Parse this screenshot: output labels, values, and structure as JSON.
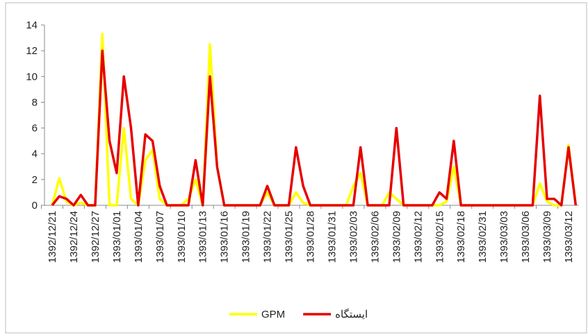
{
  "chart_data": {
    "type": "line",
    "categories": [
      "1392/12/21",
      null,
      null,
      "1392/12/24",
      null,
      null,
      "1392/12/27",
      null,
      null,
      "1393/01/01",
      null,
      null,
      "1393/01/04",
      null,
      null,
      "1393/01/07",
      null,
      null,
      "1393/01/10",
      null,
      null,
      "1393/01/13",
      null,
      null,
      "1393/01/16",
      null,
      null,
      "1393/01/19",
      null,
      null,
      "1393/01/22",
      null,
      null,
      "1393/01/25",
      null,
      null,
      "1393/01/28",
      null,
      null,
      "1393/01/31",
      null,
      null,
      "1393/02/03",
      null,
      null,
      "1393/02/06",
      null,
      null,
      "1393/02/09",
      null,
      null,
      "1393/02/12",
      null,
      null,
      "1393/02/15",
      null,
      null,
      "1393/02/18",
      null,
      null,
      "1393/02/31",
      null,
      null,
      "1393/03/03",
      null,
      null,
      "1393/03/06",
      null,
      null,
      "1393/03/09",
      null,
      null,
      "1393/03/12",
      null
    ],
    "series": [
      {
        "name": "GPM",
        "color": "#ffff00",
        "values": [
          0,
          2.1,
          0.3,
          0,
          0.2,
          0,
          0,
          13.3,
          0,
          0,
          6,
          0.5,
          0,
          3.5,
          4.3,
          0.5,
          0,
          0,
          0,
          0.5,
          2,
          0,
          12.5,
          3,
          0,
          0,
          0,
          0,
          0,
          0,
          1,
          0,
          0,
          0,
          1,
          0.2,
          0,
          0,
          0,
          0,
          0,
          0,
          1.5,
          2.5,
          0,
          0,
          0,
          1,
          0.5,
          0,
          0,
          0,
          0,
          0,
          0,
          0.3,
          3,
          0,
          0,
          0,
          0,
          0,
          0,
          0,
          0,
          0,
          0,
          0,
          1.7,
          0.3,
          0,
          0,
          4.7,
          0
        ]
      },
      {
        "name": "ایستگاه",
        "color": "#e60000",
        "values": [
          0,
          0.7,
          0.5,
          0,
          0.8,
          0,
          0,
          12,
          5,
          2.5,
          10,
          6,
          0,
          5.5,
          5,
          1.5,
          0,
          0,
          0,
          0,
          3.5,
          0,
          10,
          3,
          0,
          0,
          0,
          0,
          0,
          0,
          1.5,
          0,
          0,
          0,
          4.5,
          1.5,
          0,
          0,
          0,
          0,
          0,
          0,
          0,
          4.5,
          0,
          0,
          0,
          0,
          6,
          0,
          0,
          0,
          0,
          0,
          1,
          0.5,
          5,
          0,
          0,
          0,
          0,
          0,
          0,
          0,
          0,
          0,
          0,
          0,
          8.5,
          0.5,
          0.5,
          0,
          4.5,
          0
        ]
      }
    ],
    "ylim": [
      0,
      14
    ],
    "yticks": [
      0,
      2,
      4,
      6,
      8,
      10,
      12,
      14
    ],
    "legend": "bottom"
  }
}
